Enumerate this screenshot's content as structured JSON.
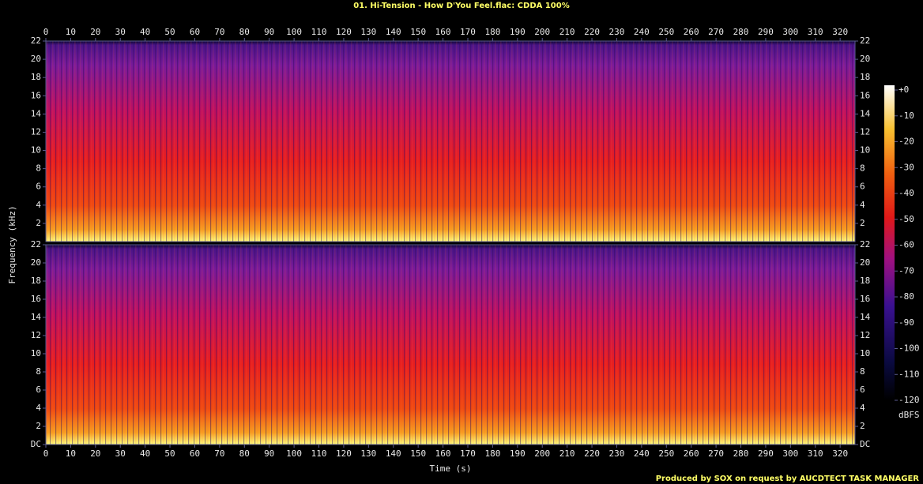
{
  "chart_data": [
    {
      "type": "spectrogram",
      "title": "01. Hi-Tension - How D'You Feel.flac: CDDA 100%",
      "y_label": "Frequency (kHz)",
      "xlim": [
        0,
        326
      ],
      "xticks": [
        0,
        10,
        20,
        30,
        40,
        50,
        60,
        70,
        80,
        90,
        100,
        110,
        120,
        130,
        140,
        150,
        160,
        170,
        180,
        190,
        200,
        210,
        220,
        230,
        240,
        250,
        260,
        270,
        280,
        290,
        300,
        310,
        320
      ],
      "ylim": [
        0,
        22
      ],
      "yticks": [
        2,
        4,
        6,
        8,
        10,
        12,
        14,
        16,
        18,
        20,
        22
      ],
      "colorbar": {
        "label": "dBFS",
        "lim": [
          -120,
          0
        ],
        "ticks": [
          {
            "value": 0,
            "label": "+0"
          },
          -10,
          -20,
          -30,
          -40,
          -50,
          -60,
          -70,
          -80,
          -90,
          -100,
          -110,
          -120
        ]
      }
    },
    {
      "type": "spectrogram",
      "x_label": "Time (s)",
      "xlim": [
        0,
        326
      ],
      "xticks": [
        0,
        10,
        20,
        30,
        40,
        50,
        60,
        70,
        80,
        90,
        100,
        110,
        120,
        130,
        140,
        150,
        160,
        170,
        180,
        190,
        200,
        210,
        220,
        230,
        240,
        250,
        260,
        270,
        280,
        290,
        300,
        310,
        320
      ],
      "ylim": [
        0,
        22
      ],
      "yticks": [
        {
          "value": 0,
          "label": "DC"
        },
        2,
        4,
        6,
        8,
        10,
        12,
        14,
        16,
        18,
        20,
        22
      ]
    }
  ],
  "footer": "Produced by SOX on request by AUCDTECT TASK MANAGER"
}
